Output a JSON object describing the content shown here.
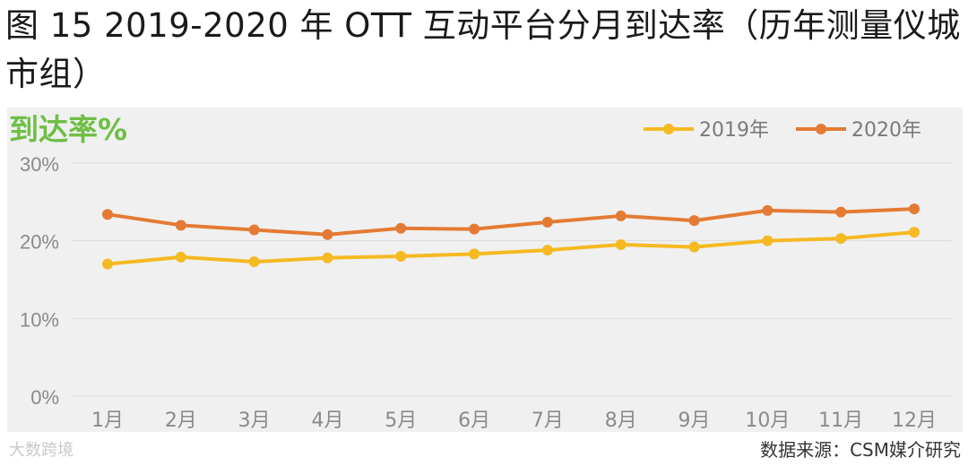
{
  "header": {
    "title": "图 15 2019-2020 年 OTT 互动平台分月到达率（历年测量仪城市组）"
  },
  "footer": {
    "watermark": "大数跨境",
    "source": "数据来源：CSM媒介研究"
  },
  "chart_data": {
    "type": "line",
    "ylabel": "到达率%",
    "categories": [
      "1月",
      "2月",
      "3月",
      "4月",
      "5月",
      "6月",
      "7月",
      "8月",
      "9月",
      "10月",
      "11月",
      "12月"
    ],
    "ylim": [
      0,
      30
    ],
    "yticks": [
      "0%",
      "10%",
      "20%",
      "30%"
    ],
    "grid": true,
    "legend_position": "top-right",
    "series": [
      {
        "name": "2019年",
        "color": "#f5b922",
        "values": [
          17.0,
          17.9,
          17.3,
          17.8,
          18.0,
          18.3,
          18.8,
          19.5,
          19.2,
          20.0,
          20.3,
          21.1
        ]
      },
      {
        "name": "2020年",
        "color": "#e47b34",
        "values": [
          23.4,
          22.0,
          21.4,
          20.8,
          21.6,
          21.5,
          22.4,
          23.2,
          22.6,
          23.9,
          23.7,
          24.1
        ]
      }
    ]
  }
}
